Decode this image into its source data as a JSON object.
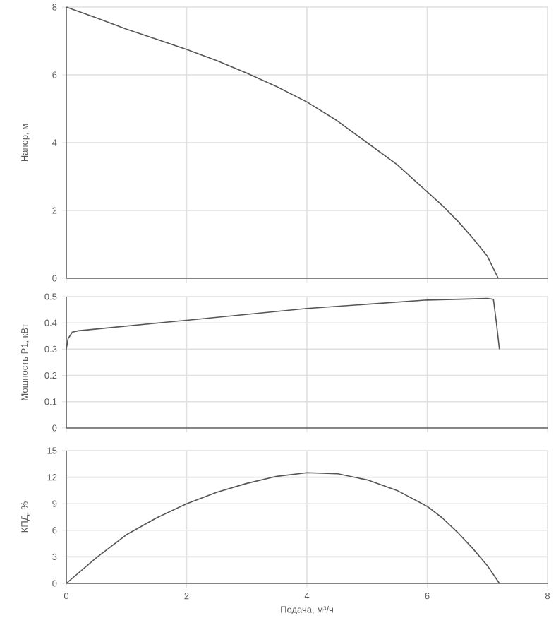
{
  "chart_data": [
    {
      "type": "line",
      "ylabel": "Напор, м",
      "x": [
        0,
        0.5,
        1,
        1.5,
        2,
        2.5,
        3,
        3.5,
        4,
        4.5,
        5,
        5.5,
        6,
        6.25,
        6.5,
        6.75,
        7,
        7.18
      ],
      "values": [
        8,
        7.68,
        7.35,
        7.05,
        6.75,
        6.42,
        6.05,
        5.65,
        5.2,
        4.65,
        4.0,
        3.35,
        2.55,
        2.15,
        1.7,
        1.2,
        0.65,
        0
      ],
      "color": "#555555",
      "xlim": [
        0,
        8
      ],
      "xticks": [
        0,
        2,
        4,
        6,
        8
      ],
      "ylim": [
        0,
        8
      ],
      "yticks": [
        0,
        2,
        4,
        6,
        8
      ],
      "grid": true,
      "tick_labels": "y"
    },
    {
      "type": "line",
      "ylabel": "Мощность P1, кВт",
      "x": [
        0,
        0.03,
        0.1,
        0.2,
        2,
        4,
        6,
        7.0,
        7.1,
        7.15,
        7.2
      ],
      "values": [
        0.3,
        0.34,
        0.365,
        0.37,
        0.41,
        0.455,
        0.487,
        0.493,
        0.49,
        0.4,
        0.3
      ],
      "color": "#555555",
      "xlim": [
        0,
        8
      ],
      "xticks": [
        0,
        2,
        4,
        6,
        8
      ],
      "ylim": [
        0,
        0.5
      ],
      "yticks": [
        0,
        0.1,
        0.2,
        0.3,
        0.4,
        0.5
      ],
      "grid": true,
      "tick_labels": "y"
    },
    {
      "type": "line",
      "xlabel": "Подача, м³/ч",
      "ylabel": "КПД, %",
      "x": [
        0,
        0.5,
        1,
        1.5,
        2,
        2.5,
        3,
        3.5,
        4,
        4.5,
        5,
        5.5,
        6,
        6.25,
        6.5,
        6.75,
        7,
        7.2
      ],
      "values": [
        0,
        2.9,
        5.5,
        7.4,
        9.0,
        10.3,
        11.3,
        12.1,
        12.5,
        12.4,
        11.7,
        10.5,
        8.7,
        7.4,
        5.8,
        4.0,
        2.0,
        0
      ],
      "color": "#555555",
      "xlim": [
        0,
        8
      ],
      "xticks": [
        0,
        2,
        4,
        6,
        8
      ],
      "ylim": [
        0,
        15
      ],
      "yticks": [
        0,
        3,
        6,
        9,
        12,
        15
      ],
      "grid": true
    }
  ]
}
